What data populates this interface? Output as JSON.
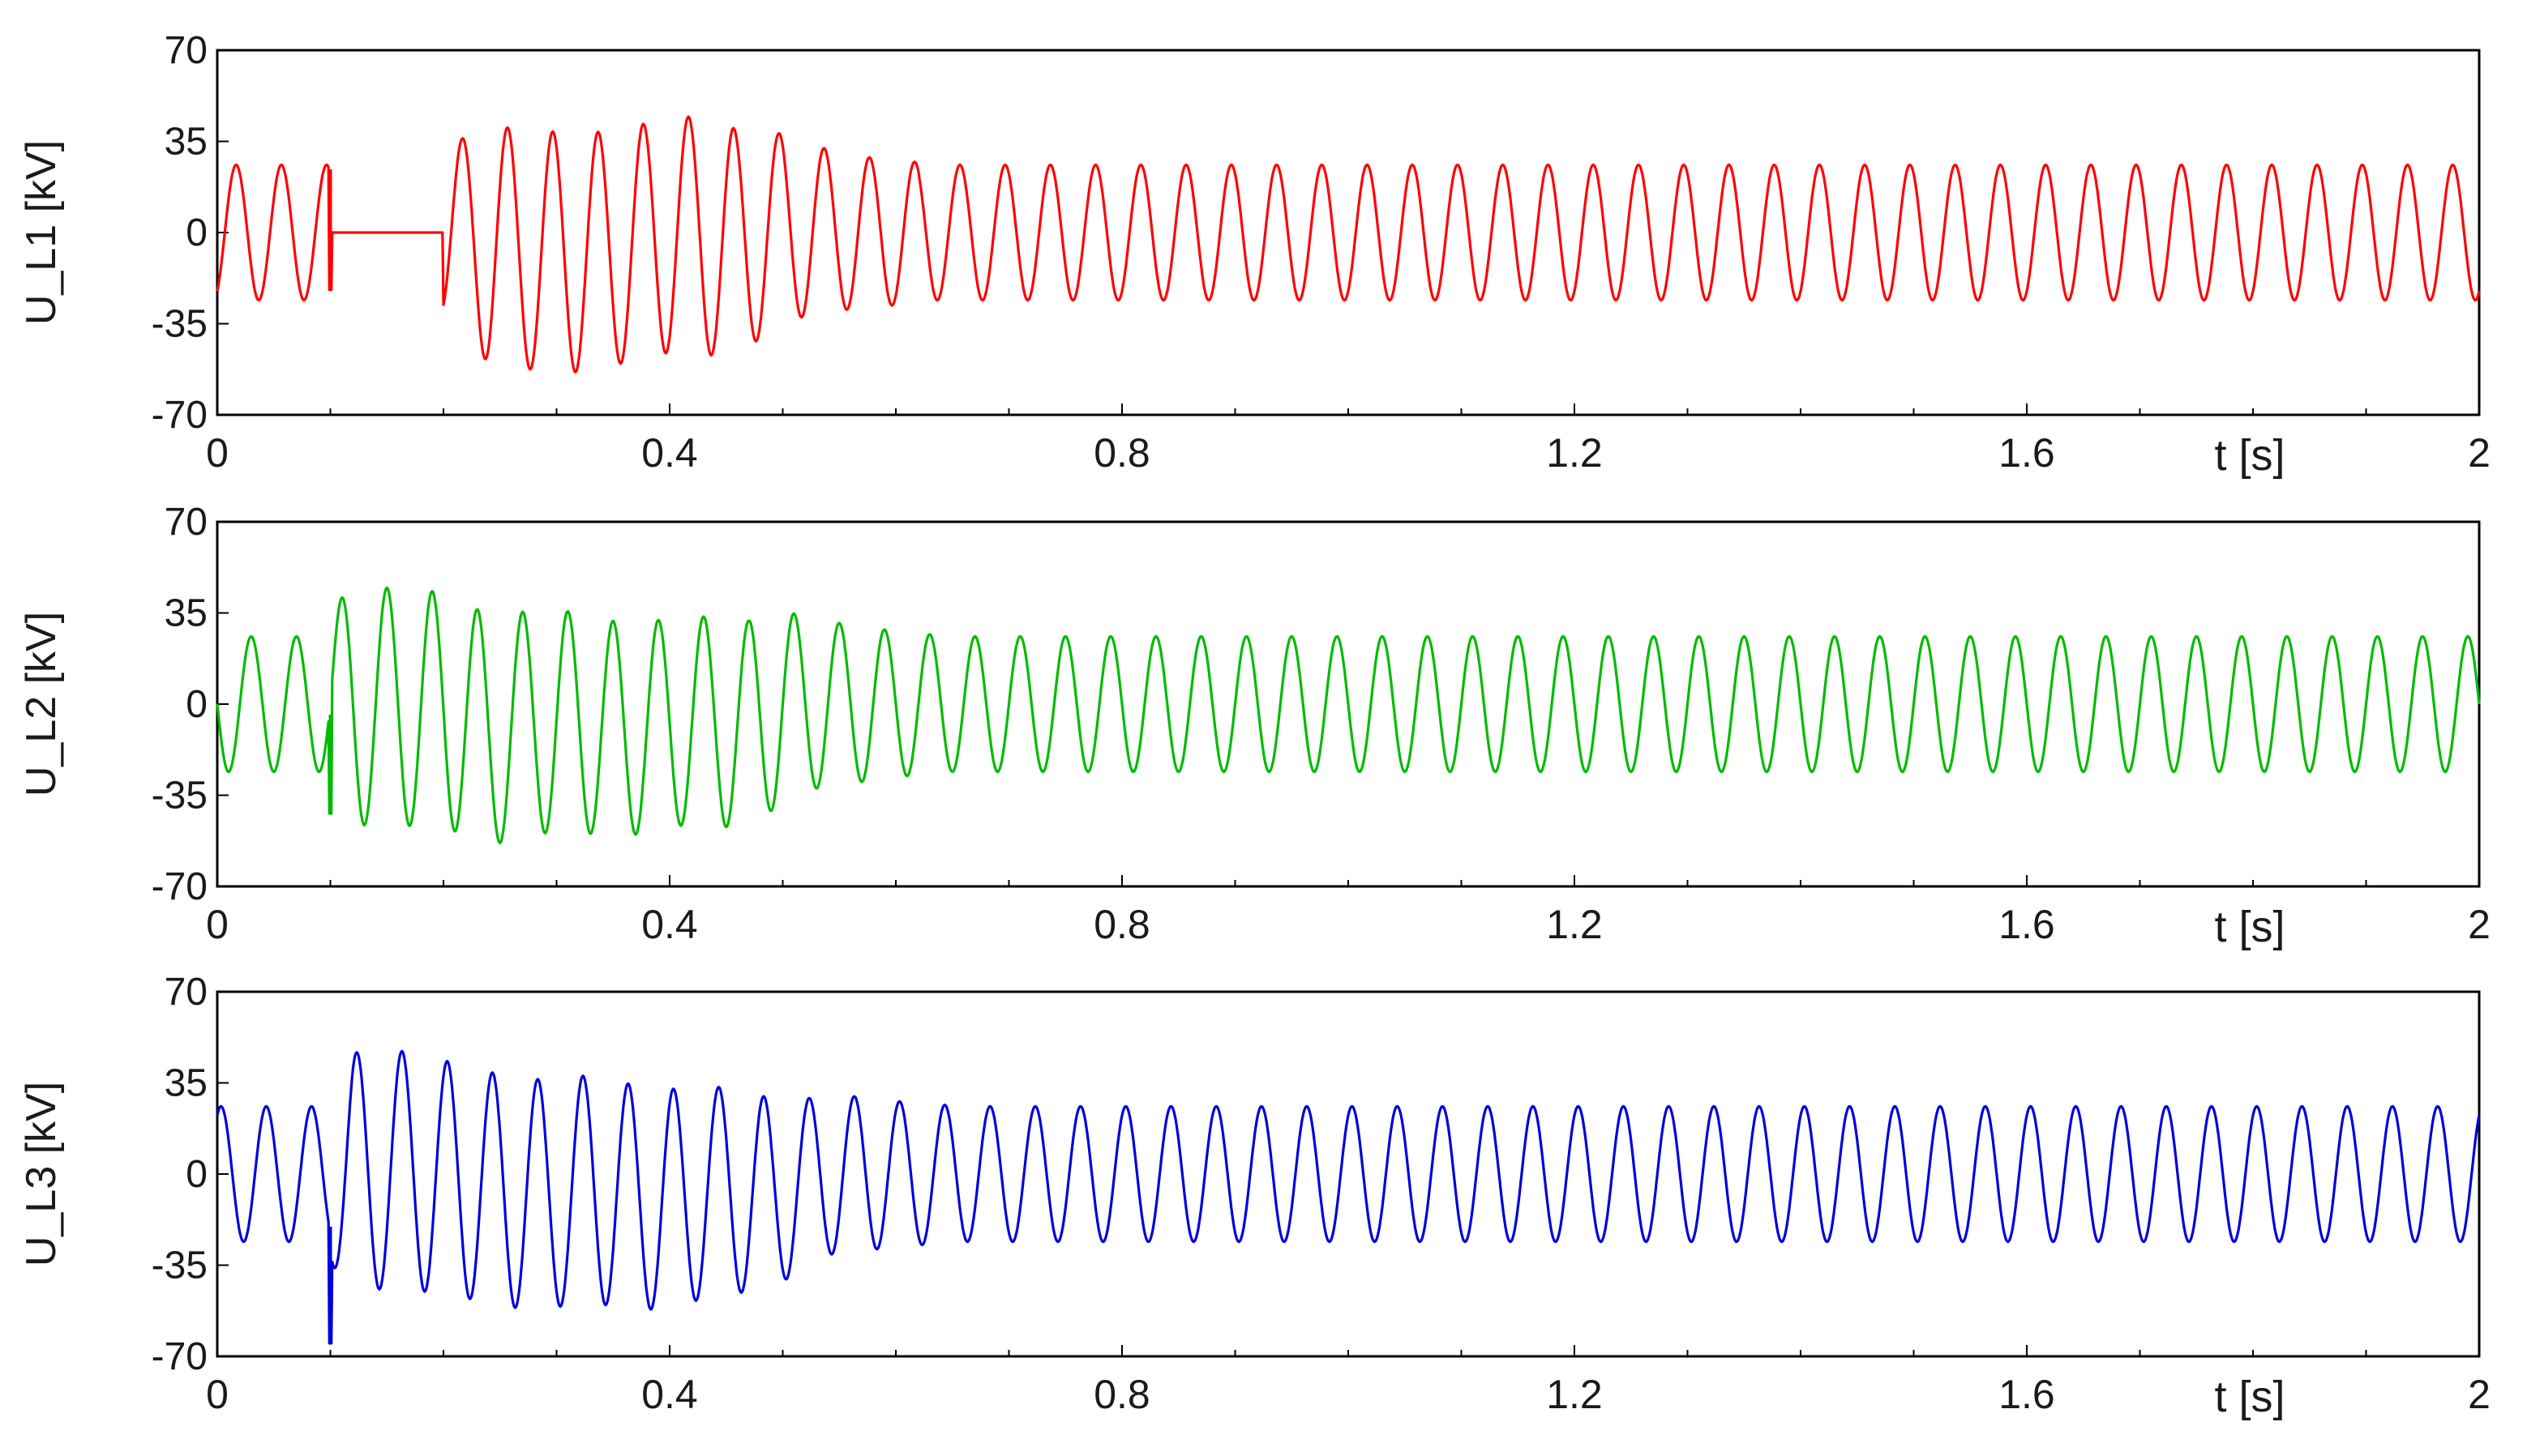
{
  "chart_data": [
    {
      "type": "line",
      "ylabel": "U_L1 [kV]",
      "xlabel": "t [s]",
      "xlim": [
        0,
        2
      ],
      "ylim": [
        -70,
        70
      ],
      "x_ticks": [
        "0",
        "0.4",
        "0.8",
        "1.2",
        "1.6",
        "2"
      ],
      "y_ticks": [
        "70",
        "35",
        "0",
        "-35",
        "-70"
      ],
      "grid": false,
      "series": [
        {
          "color": "#ff0000",
          "signal": {
            "frequency_hz": 25,
            "steady_amplitude": 26,
            "phase_deg": -60,
            "dead_interval": [
              0.1,
              0.2,
              0
            ],
            "transient_envelope": [
              [
                0.2,
                32
              ],
              [
                0.24,
                46
              ],
              [
                0.3,
                46
              ],
              [
                0.36,
                45
              ],
              [
                0.45,
                45
              ],
              [
                0.5,
                36
              ],
              [
                0.55,
                30
              ],
              [
                0.62,
                27
              ]
            ],
            "transient_offset": [
              [
                0.2,
                0
              ],
              [
                0.26,
                -6
              ],
              [
                0.32,
                -8
              ],
              [
                0.36,
                -5
              ],
              [
                0.41,
                0
              ],
              [
                0.46,
                -4
              ],
              [
                0.5,
                2
              ],
              [
                0.56,
                0
              ]
            ],
            "spikes": [
              [
                0.1,
                -22
              ]
            ]
          }
        }
      ]
    },
    {
      "type": "line",
      "ylabel": "U_L2 [kV]",
      "xlabel": "t [s]",
      "xlim": [
        0,
        2
      ],
      "ylim": [
        -70,
        70
      ],
      "x_ticks": [
        "0",
        "0.4",
        "0.8",
        "1.2",
        "1.6",
        "2"
      ],
      "y_ticks": [
        "70",
        "35",
        "0",
        "-35",
        "-70"
      ],
      "grid": false,
      "series": [
        {
          "color": "#00bb00",
          "signal": {
            "frequency_hz": 25,
            "steady_amplitude": 26,
            "phase_deg": 180,
            "transient_envelope": [
              [
                0.1,
                36
              ],
              [
                0.12,
                46
              ],
              [
                0.2,
                45
              ],
              [
                0.25,
                44
              ],
              [
                0.32,
                42
              ],
              [
                0.4,
                40
              ],
              [
                0.48,
                40
              ],
              [
                0.52,
                33
              ],
              [
                0.6,
                28
              ],
              [
                0.65,
                26
              ]
            ],
            "transient_offset": [
              [
                0.1,
                0
              ],
              [
                0.2,
                -2
              ],
              [
                0.24,
                -10
              ],
              [
                0.3,
                -6
              ],
              [
                0.36,
                -10
              ],
              [
                0.42,
                -6
              ],
              [
                0.47,
                -8
              ],
              [
                0.5,
                0
              ]
            ],
            "spikes": [
              [
                0.1,
                -42
              ]
            ]
          }
        }
      ]
    },
    {
      "type": "line",
      "ylabel": "U_L3 [kV]",
      "xlabel": "t [s]",
      "xlim": [
        0,
        2
      ],
      "ylim": [
        -70,
        70
      ],
      "x_ticks": [
        "0",
        "0.4",
        "0.8",
        "1.2",
        "1.6",
        "2"
      ],
      "y_ticks": [
        "70",
        "35",
        "0",
        "-35",
        "-70"
      ],
      "grid": false,
      "series": [
        {
          "color": "#0000dd",
          "signal": {
            "frequency_hz": 25,
            "steady_amplitude": 26,
            "phase_deg": 60,
            "transient_envelope": [
              [
                0.1,
                34
              ],
              [
                0.12,
                46
              ],
              [
                0.2,
                45
              ],
              [
                0.26,
                44
              ],
              [
                0.32,
                44
              ],
              [
                0.4,
                42
              ],
              [
                0.48,
                38
              ],
              [
                0.52,
                32
              ],
              [
                0.6,
                28
              ],
              [
                0.66,
                26
              ]
            ],
            "transient_offset": [
              [
                0.1,
                0
              ],
              [
                0.16,
                2
              ],
              [
                0.22,
                -3
              ],
              [
                0.27,
                -8
              ],
              [
                0.33,
                -6
              ],
              [
                0.39,
                -10
              ],
              [
                0.45,
                -6
              ],
              [
                0.49,
                -8
              ],
              [
                0.54,
                0
              ]
            ],
            "spikes": [
              [
                0.1,
                -65
              ]
            ]
          }
        }
      ]
    }
  ]
}
